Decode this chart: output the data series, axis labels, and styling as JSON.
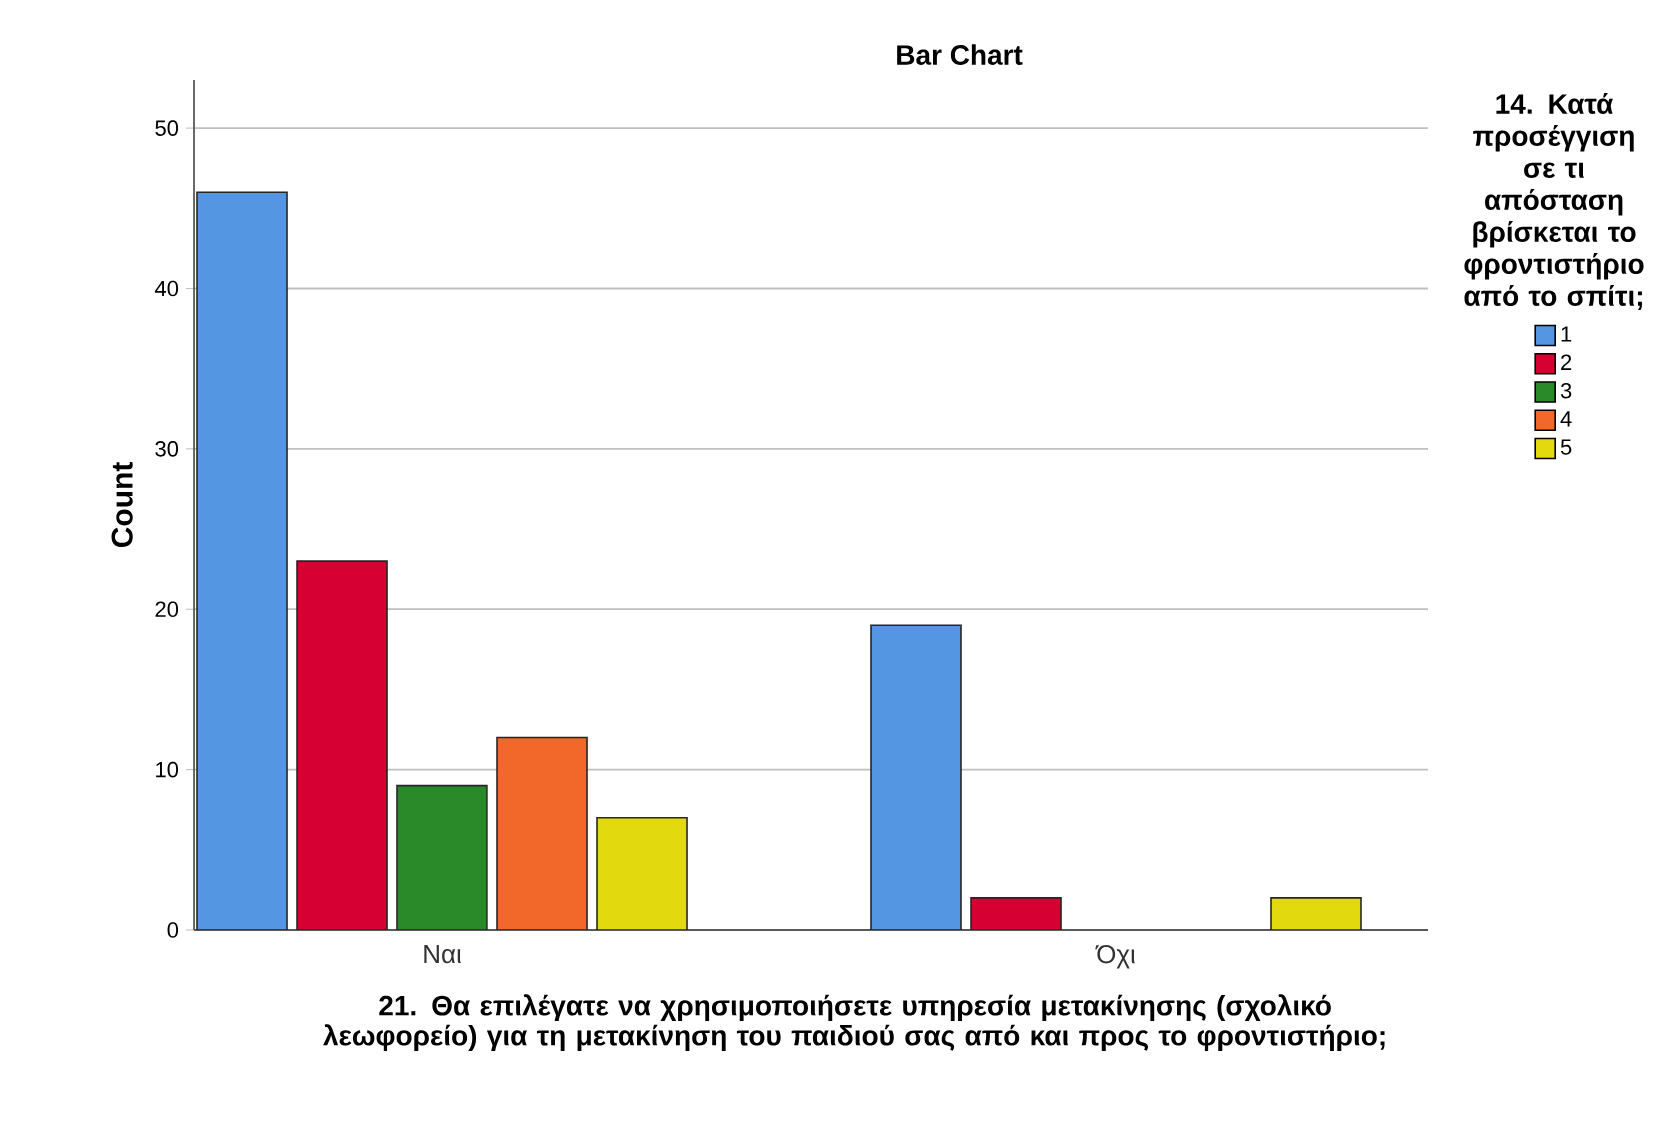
{
  "chart_data": {
    "type": "bar",
    "title": "Bar Chart",
    "xlabel": "21. Θα επιλέγατε να χρησιμοποιήσετε υπηρεσία μετακίνησης (σχολικό λεωφορείο) για τη μετακίνηση του παιδιού σας από και προς το φροντιστήριο;",
    "ylabel": "Count",
    "legend_title": "14. Κατά προσέγγιση σε τι απόσταση βρίσκεται το φροντιστήριο από το σπίτι;",
    "categories": [
      "Ναι",
      "Όχι"
    ],
    "series": [
      {
        "name": "1",
        "color": "#5596e3",
        "values": [
          46,
          19
        ]
      },
      {
        "name": "2",
        "color": "#d60032",
        "values": [
          23,
          2
        ]
      },
      {
        "name": "3",
        "color": "#2a8a2a",
        "values": [
          9,
          null
        ]
      },
      {
        "name": "4",
        "color": "#f2682a",
        "values": [
          12,
          null
        ]
      },
      {
        "name": "5",
        "color": "#e3d90f",
        "values": [
          7,
          2
        ]
      }
    ],
    "ylim": [
      0,
      53
    ],
    "yticks": [
      0,
      10,
      20,
      30,
      40,
      50
    ],
    "grid": "y",
    "legend": "right"
  }
}
